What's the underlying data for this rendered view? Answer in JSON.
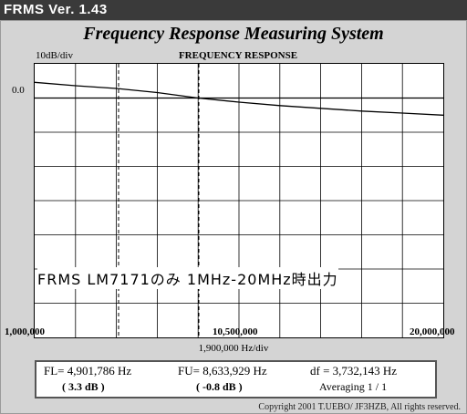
{
  "app_title": "FRMS  Ver. 1.43",
  "main_title": "Frequency Response Measuring System",
  "scale_label": "10dB/div",
  "chart_title": "FREQUENCY RESPONSE",
  "y_ref_label": "0.0",
  "overlay_note": "FRMS  LM7171のみ  1MHz-20MHz時出力",
  "x_axis": {
    "min": "1,000,000",
    "mid": "10,500,000",
    "max": "20,000,000",
    "per_div": "1,900,000  Hz/div"
  },
  "readout": {
    "fl": "FL= 4,901,786  Hz",
    "fu": "FU= 8,633,929  Hz",
    "df": "df = 3,732,143  Hz",
    "fl_db": "( 3.3 dB )",
    "fu_db": "( -0.8 dB )",
    "averaging": "Averaging    1 / 1"
  },
  "copyright": "Copyright 2001 T.UEBO/ JF3HZB, All rights reserved.",
  "chart_data": {
    "type": "line",
    "x_unit": "Hz",
    "y_unit": "dB",
    "xlim": [
      1000000,
      20000000
    ],
    "ylim": [
      -70,
      10
    ],
    "y_ref": 0,
    "grid": true,
    "markers": [
      4901786,
      8633929
    ],
    "series": [
      {
        "x": [
          1000000,
          2900000,
          4800000,
          6700000,
          8600000,
          10500000,
          12400000,
          14300000,
          16200000,
          18100000,
          20000000
        ],
        "y": [
          4.6,
          3.6,
          2.8,
          1.6,
          0.0,
          -1.2,
          -2.2,
          -3.0,
          -3.8,
          -4.4,
          -5.0
        ]
      }
    ]
  }
}
